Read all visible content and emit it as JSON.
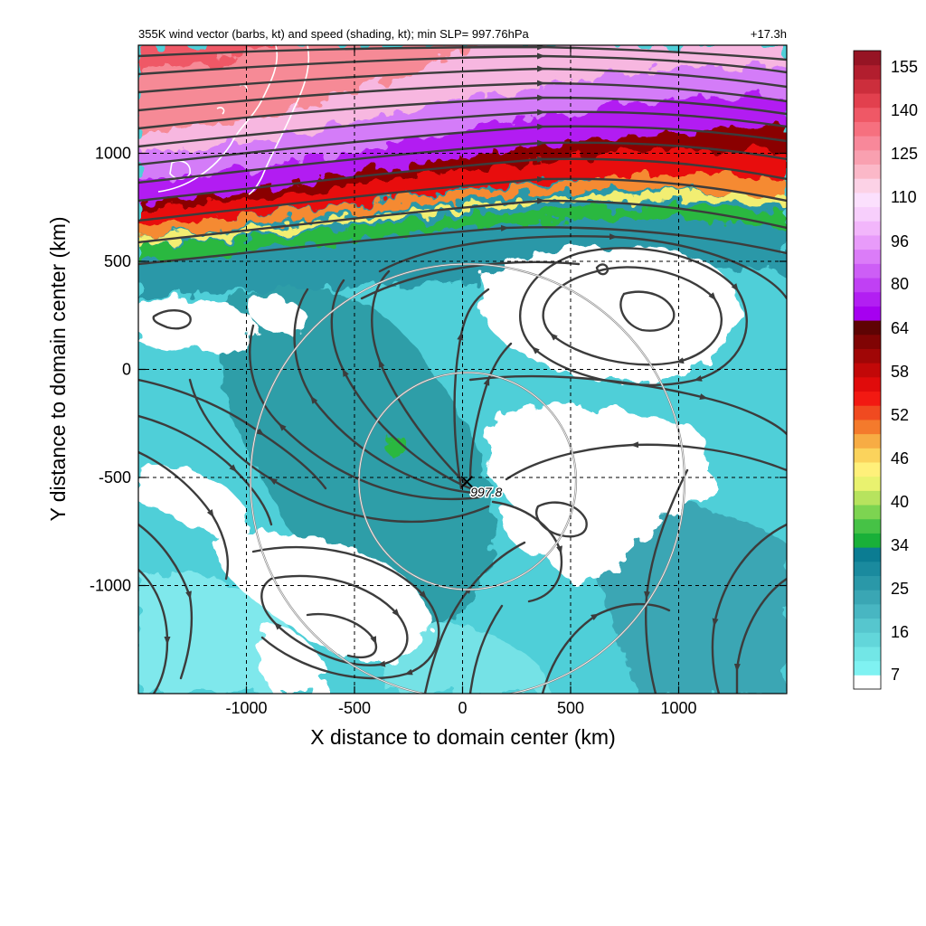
{
  "header": {
    "title": "355K wind vector (barbs, kt) and speed (shading, kt); min SLP= 997.76hPa",
    "time_label": "+17.3h"
  },
  "chart_data": {
    "type": "heatmap",
    "title": "355K wind vector (barbs, kt) and speed (shading, kt); min SLP= 997.76hPa",
    "xlabel": "X distance to domain center (km)",
    "ylabel": "Y distance to domain center (km)",
    "xlim": [
      -1500,
      1500
    ],
    "ylim": [
      -1500,
      1500
    ],
    "xticks": [
      -1000,
      -500,
      0,
      500,
      1000
    ],
    "yticks": [
      -1000,
      -500,
      0,
      500,
      1000
    ],
    "grid": true,
    "center": {
      "x": 20,
      "y": -520,
      "label": "997.8"
    },
    "circles_radius_km": [
      500,
      1000
    ],
    "colorbar": {
      "labels": [
        "7",
        "16",
        "25",
        "34",
        "40",
        "46",
        "52",
        "58",
        "64",
        "80",
        "96",
        "110",
        "125",
        "140",
        "155"
      ],
      "colors": [
        "#ffffff",
        "#7ff2f2",
        "#72e6e6",
        "#62d6da",
        "#56c6ce",
        "#48b6c2",
        "#3aa6b4",
        "#2a98a8",
        "#1a8a9e",
        "#0b7c92",
        "#19b039",
        "#46c246",
        "#7dd451",
        "#b7e35e",
        "#e9f26f",
        "#fff07a",
        "#fbd35c",
        "#f7ac44",
        "#f47a2c",
        "#f04a20",
        "#f21912",
        "#e00b0b",
        "#c20808",
        "#a00606",
        "#800404",
        "#5e0303",
        "#a600f0",
        "#b21ff2",
        "#c040f4",
        "#cd5ef6",
        "#db7cf8",
        "#e89bfa",
        "#f2b6fb",
        "#f7cffc",
        "#fbe0fd",
        "#fcd2e6",
        "#fbb8c8",
        "#f9a0b0",
        "#f8889a",
        "#f6707f",
        "#ef5866",
        "#e2404e",
        "#cc2e3c",
        "#b21e2e",
        "#961424"
      ]
    }
  }
}
